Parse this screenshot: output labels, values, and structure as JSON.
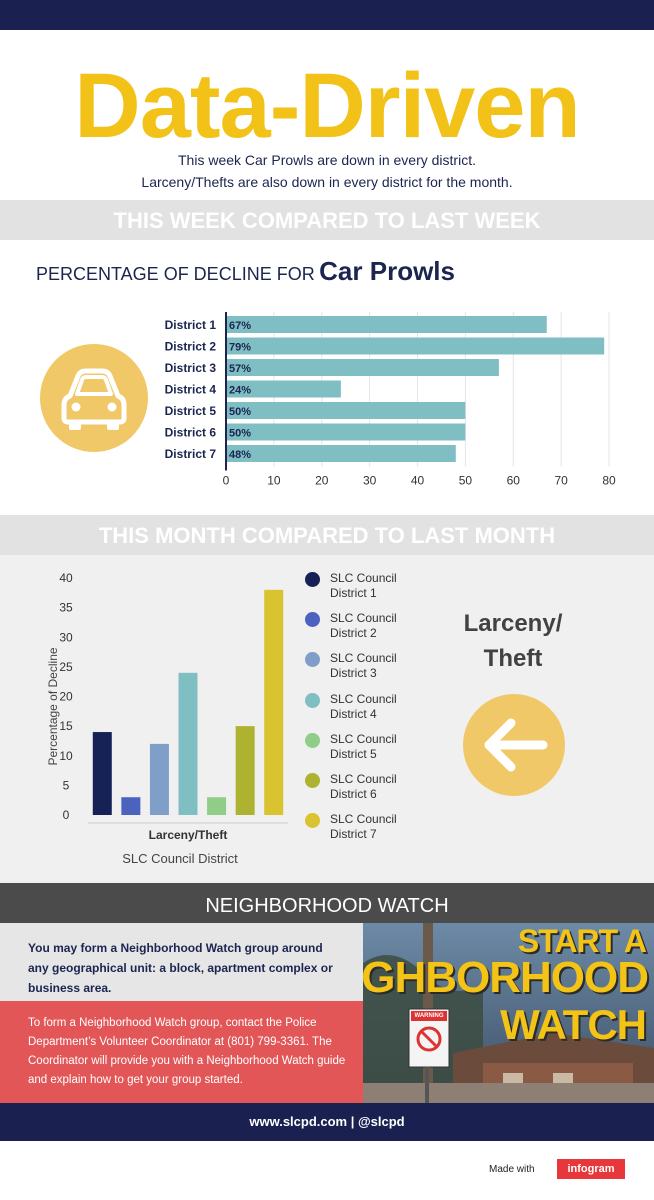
{
  "header": {
    "title": "Data-Driven",
    "subtitle_line1": "This week Car Prowls are down in every district.",
    "subtitle_line2": "Larceny/Thefts are also down in every district for the month."
  },
  "week_section": {
    "band_label": "THIS WEEK COMPARED TO LAST WEEK",
    "heading_prefix": "PERCENTAGE OF DECLINE FOR",
    "heading_emphasis": "Car Prowls",
    "icon": "car-icon"
  },
  "month_section": {
    "band_label": "THIS MONTH COMPARED TO LAST MONTH",
    "side_label_line1": "Larceny/",
    "side_label_line2": "Theft",
    "icon": "arrow-left-icon"
  },
  "colors": {
    "title": "#f2c219",
    "navy": "#1a2150",
    "hbar": "#7fbfc4",
    "icon_circle": "#f1c867",
    "neighborhood_red": "#e25657"
  },
  "chart_data": [
    {
      "type": "bar",
      "orientation": "horizontal",
      "categories": [
        "District 1",
        "District 2",
        "District 3",
        "District 4",
        "District 5",
        "District 6",
        "District 7"
      ],
      "values": [
        67,
        79,
        57,
        24,
        50,
        50,
        48
      ],
      "data_labels": [
        "67%",
        "79%",
        "57%",
        "24%",
        "50%",
        "50%",
        "48%"
      ],
      "xlim": [
        0,
        80
      ],
      "xticks": [
        0,
        10,
        20,
        30,
        40,
        50,
        60,
        70,
        80
      ],
      "grid": true,
      "color": "#7fbfc4"
    },
    {
      "type": "bar",
      "orientation": "vertical",
      "categories": [
        "Larceny/Theft"
      ],
      "series": [
        {
          "name": "SLC Council District 1",
          "values": [
            14
          ],
          "color": "#162255"
        },
        {
          "name": "SLC Council District 2",
          "values": [
            3
          ],
          "color": "#4b62bf"
        },
        {
          "name": "SLC Council District 3",
          "values": [
            12
          ],
          "color": "#7f9fc8"
        },
        {
          "name": "SLC Council District 4",
          "values": [
            24
          ],
          "color": "#7fbfc4"
        },
        {
          "name": "SLC Council District 5",
          "values": [
            3
          ],
          "color": "#8fcd89"
        },
        {
          "name": "SLC Council District 6",
          "values": [
            15
          ],
          "color": "#adb230"
        },
        {
          "name": "SLC Council District 7",
          "values": [
            38
          ],
          "color": "#d9c331"
        }
      ],
      "xlabel": "SLC Council District",
      "ylabel": "Percentage of Decline",
      "ylim": [
        0,
        40
      ],
      "yticks": [
        0,
        5,
        10,
        15,
        20,
        25,
        30,
        35,
        40
      ],
      "grid": false,
      "legend": "right"
    }
  ],
  "legend_items": [
    {
      "line1": "SLC Council",
      "line2": "District 1",
      "color": "#162255"
    },
    {
      "line1": "SLC Council",
      "line2": "District 2",
      "color": "#4b62bf"
    },
    {
      "line1": "SLC Council",
      "line2": "District 3",
      "color": "#7f9fc8"
    },
    {
      "line1": "SLC Council",
      "line2": "District 4",
      "color": "#7fbfc4"
    },
    {
      "line1": "SLC Council",
      "line2": "District 5",
      "color": "#8fcd89"
    },
    {
      "line1": "SLC Council",
      "line2": "District 6",
      "color": "#adb230"
    },
    {
      "line1": "SLC Council",
      "line2": "District 7",
      "color": "#d9c331"
    }
  ],
  "neighborhood_watch": {
    "heading": "NEIGHBORHOOD WATCH",
    "paragraph1": "You may form a Neighborhood Watch group around any geographical unit: a block, apartment complex or business area.",
    "paragraph2": "To form a Neighborhood Watch group, contact the Police Department’s Volunteer Coordinator at (801) 799-3361. The Coordinator will provide you with a Neighborhood Watch guide and explain how to get your group started.",
    "poster_line1": "START A",
    "poster_line2": "NEIGHBORHOOD",
    "poster_line3": "WATCH",
    "sign_text": "WARNING"
  },
  "footer": {
    "text": "www.slcpd.com |  @slcpd",
    "made_with": "Made with",
    "badge": "infogram"
  }
}
